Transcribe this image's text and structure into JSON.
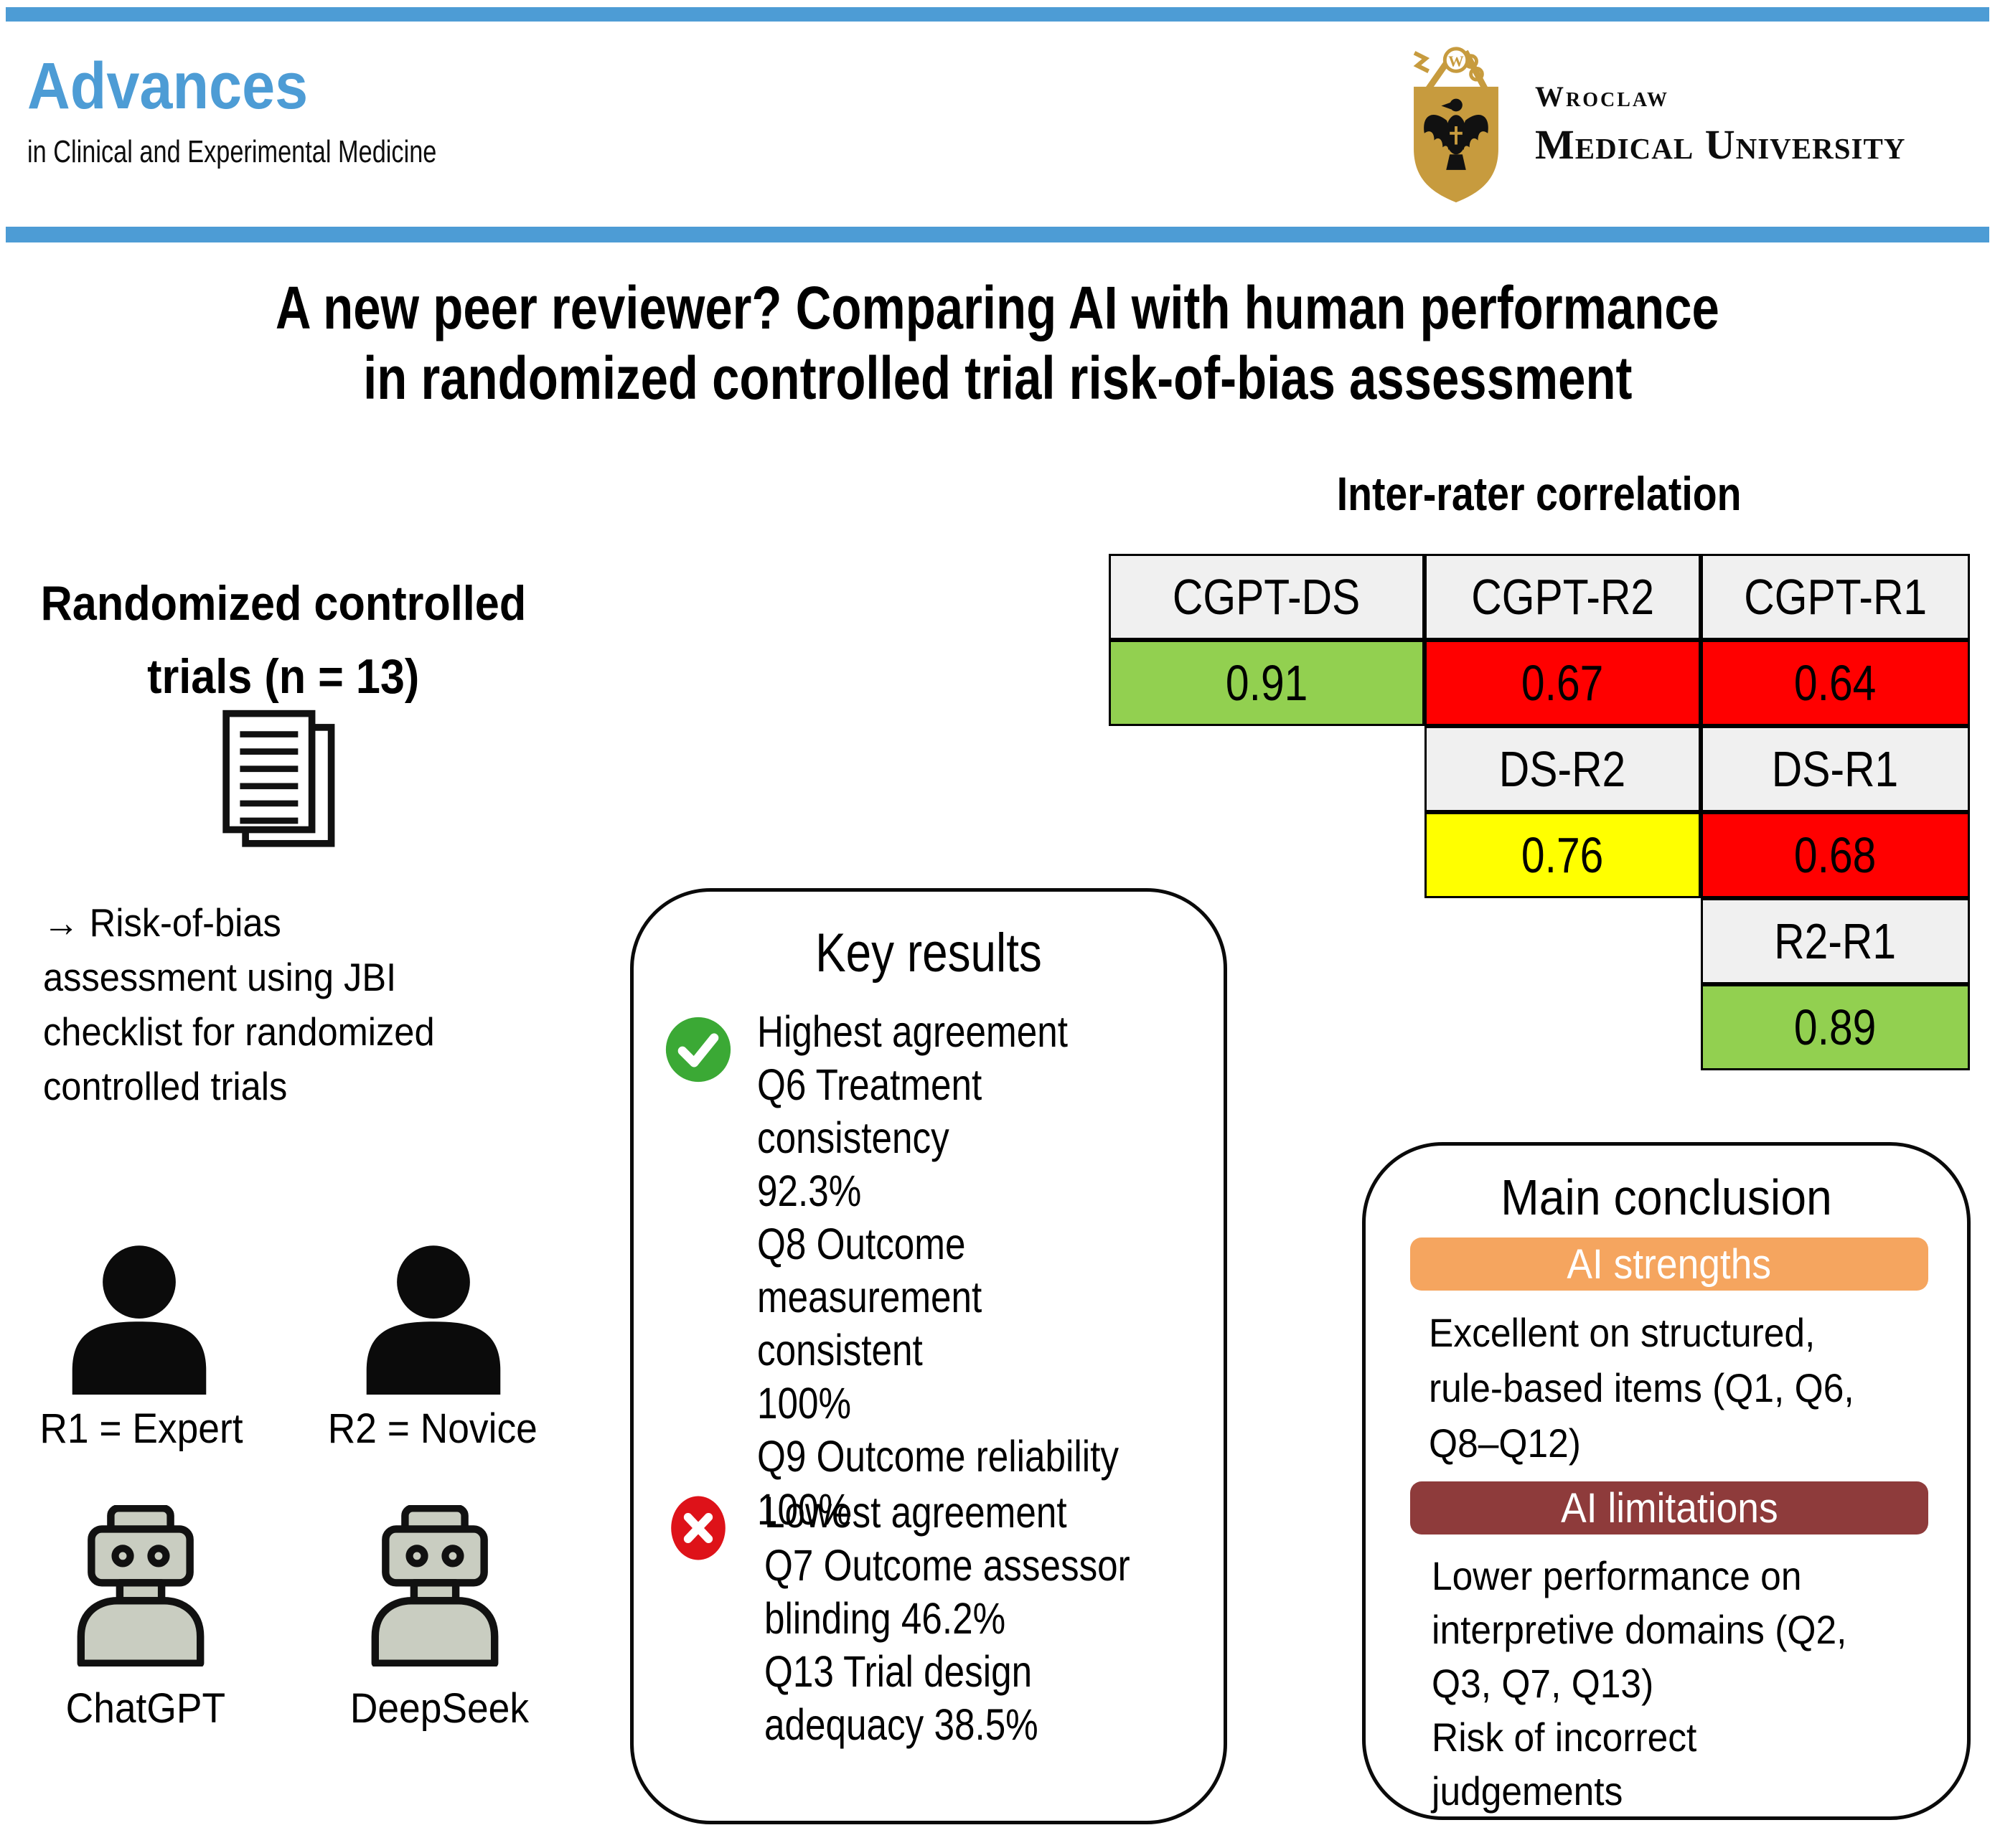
{
  "colors": {
    "accent_blue": "#4D9CD5",
    "crest_gold": "#C79B3E",
    "table_green": "#92D050",
    "table_red": "#FF0000",
    "table_yellow": "#FFFF00",
    "table_header_gray": "#F0F0F0",
    "check_green": "#3BA935",
    "cross_red": "#DE1219",
    "strengths_orange": "#F5A55F",
    "limitations_maroon": "#8E3B3B",
    "robot_gray": "#C9CDC1"
  },
  "header": {
    "journal_line1": "Advances",
    "journal_line2": "in Clinical and Experimental Medicine",
    "university_line1": "Wroclaw",
    "university_line2": "Medical University"
  },
  "title": {
    "line1": "A new peer reviewer? Comparing AI with human performance",
    "line2": "in randomized controlled trial risk-of-bias assessment"
  },
  "left_panel": {
    "trials_heading_line1": "Randomized controlled",
    "trials_heading_line2": "trials (n = 13)",
    "assessment_note_lines": [
      "→ Risk-of-bias",
      "assessment using JBI",
      "checklist for randomized",
      "controlled trials"
    ],
    "raters": [
      {
        "icon": "person",
        "label": "R1 = Expert"
      },
      {
        "icon": "person",
        "label": "R2 = Novice"
      }
    ],
    "ai_models": [
      {
        "icon": "robot",
        "label": "ChatGPT"
      },
      {
        "icon": "robot",
        "label": "DeepSeek"
      }
    ]
  },
  "key_results": {
    "title": "Key results",
    "positive_lines": [
      "Highest agreement",
      "Q6 Treatment consistency",
      "92.3%",
      "Q8 Outcome",
      "measurement consistent",
      "100%",
      "Q9 Outcome reliability",
      "100%"
    ],
    "negative_lines": [
      "Lowest agreement",
      "Q7 Outcome assessor",
      "blinding 46.2%",
      "Q13 Trial design",
      "adequacy 38.5%"
    ]
  },
  "correlation": {
    "title": "Inter-rater correlation",
    "cells": [
      {
        "label": "CGPT-DS",
        "value": "0.91",
        "color": "#92D050",
        "col": 1,
        "row": 1
      },
      {
        "label": "CGPT-R2",
        "value": "0.67",
        "color": "#FF0000",
        "col": 2,
        "row": 1
      },
      {
        "label": "CGPT-R1",
        "value": "0.64",
        "color": "#FF0000",
        "col": 3,
        "row": 1
      },
      {
        "label": "DS-R2",
        "value": "0.76",
        "color": "#FFFF00",
        "col": 2,
        "row": 3
      },
      {
        "label": "DS-R1",
        "value": "0.68",
        "color": "#FF0000",
        "col": 3,
        "row": 3
      },
      {
        "label": "R2-R1",
        "value": "0.89",
        "color": "#92D050",
        "col": 3,
        "row": 5
      }
    ]
  },
  "main_conclusion": {
    "title": "Main conclusion",
    "strengths_header": "AI strengths",
    "strengths_lines": [
      "Excellent on structured,",
      "rule-based items (Q1, Q6,",
      "Q8–Q12)"
    ],
    "limitations_header": "AI limitations",
    "limitations_lines": [
      "Lower performance on",
      "interpretive domains (Q2,",
      "Q3, Q7, Q13)",
      "Risk of incorrect",
      "judgements"
    ]
  },
  "chart_data": {
    "type": "table",
    "title": "Inter-rater correlation",
    "categories": [
      "CGPT-DS",
      "CGPT-R2",
      "CGPT-R1",
      "DS-R2",
      "DS-R1",
      "R2-R1"
    ],
    "values": [
      0.91,
      0.67,
      0.64,
      0.76,
      0.68,
      0.89
    ],
    "cell_colors": [
      "#92D050",
      "#FF0000",
      "#FF0000",
      "#FFFF00",
      "#FF0000",
      "#92D050"
    ],
    "layout": "stepped upper-triangle matrix, 3 columns"
  }
}
